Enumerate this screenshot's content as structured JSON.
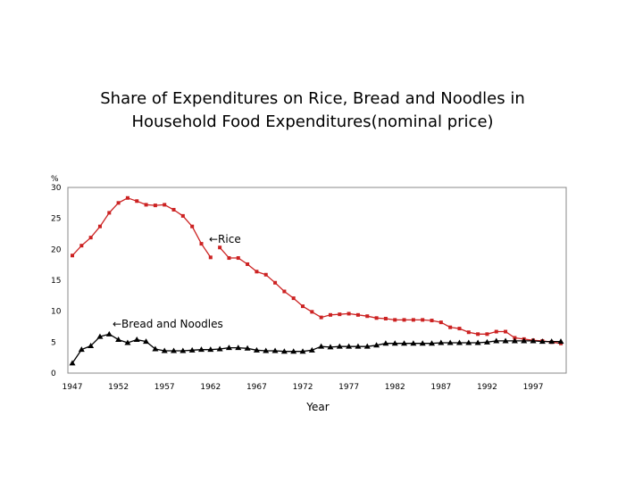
{
  "chart_data": {
    "type": "line",
    "title_line1": "Share of Expenditures on Rice, Bread and Noodles in",
    "title_line2": "Household Food Expenditures(nominal price)",
    "ylabel": "%",
    "xlabel": "Year",
    "ylim": [
      0,
      30
    ],
    "yticks": [
      "0",
      "5",
      "10",
      "15",
      "20",
      "25",
      "30"
    ],
    "xlim": [
      1947,
      2000
    ],
    "xticks": [
      "1947",
      "1952",
      "1957",
      "1962",
      "1967",
      "1972",
      "1977",
      "1982",
      "1987",
      "1992",
      "1997"
    ],
    "series": [
      {
        "name": "Rice",
        "annotation": "←Rice",
        "color": "#cc2222",
        "marker": "square",
        "segments": [
          {
            "x": [
              1947,
              1948,
              1949,
              1950,
              1951,
              1952,
              1953,
              1954,
              1955,
              1956,
              1957,
              1958,
              1959,
              1960,
              1961,
              1962
            ],
            "values": [
              19.0,
              20.6,
              21.9,
              23.7,
              25.9,
              27.5,
              28.3,
              27.8,
              27.2,
              27.1,
              27.2,
              26.4,
              25.4,
              23.7,
              20.9,
              18.7
            ]
          },
          {
            "x": [
              1963,
              1964,
              1965,
              1966,
              1967,
              1968,
              1969,
              1970,
              1971,
              1972,
              1973,
              1974,
              1975,
              1976,
              1977,
              1978,
              1979,
              1980,
              1981,
              1982,
              1983,
              1984,
              1985,
              1986,
              1987,
              1988,
              1989,
              1990,
              1991,
              1992,
              1993,
              1994,
              1995,
              1996,
              1997,
              1998,
              1999,
              2000
            ],
            "values": [
              20.3,
              18.6,
              18.6,
              17.6,
              16.4,
              15.9,
              14.6,
              13.2,
              12.1,
              10.8,
              9.9,
              9.0,
              9.4,
              9.5,
              9.6,
              9.4,
              9.2,
              8.9,
              8.8,
              8.6,
              8.6,
              8.6,
              8.6,
              8.5,
              8.2,
              7.4,
              7.2,
              6.6,
              6.3,
              6.3,
              6.7,
              6.7,
              5.7,
              5.5,
              5.3,
              5.2,
              5.0,
              4.8
            ]
          }
        ]
      },
      {
        "name": "Bread and Noodles",
        "annotation": "←Bread and Noodles",
        "color": "#000000",
        "marker": "triangle",
        "segments": [
          {
            "x": [
              1947,
              1948,
              1949,
              1950,
              1951,
              1952,
              1953,
              1954,
              1955,
              1956,
              1957,
              1958,
              1959,
              1960,
              1961,
              1962,
              1963,
              1964,
              1965,
              1966,
              1967,
              1968,
              1969,
              1970,
              1971,
              1972,
              1973,
              1974,
              1975,
              1976,
              1977,
              1978,
              1979,
              1980,
              1981,
              1982,
              1983,
              1984,
              1985,
              1986,
              1987,
              1988,
              1989,
              1990,
              1991,
              1992,
              1993,
              1994,
              1995,
              1996,
              1997,
              1998,
              1999,
              2000
            ],
            "values": [
              1.6,
              3.8,
              4.4,
              5.9,
              6.3,
              5.4,
              4.9,
              5.4,
              5.1,
              3.9,
              3.6,
              3.6,
              3.6,
              3.7,
              3.8,
              3.8,
              3.9,
              4.1,
              4.1,
              4.0,
              3.7,
              3.6,
              3.6,
              3.5,
              3.5,
              3.5,
              3.7,
              4.3,
              4.2,
              4.3,
              4.3,
              4.3,
              4.3,
              4.5,
              4.8,
              4.8,
              4.8,
              4.8,
              4.8,
              4.8,
              4.9,
              4.9,
              4.9,
              4.9,
              4.9,
              5.0,
              5.2,
              5.2,
              5.2,
              5.2,
              5.2,
              5.1,
              5.1,
              5.1
            ]
          }
        ]
      }
    ]
  }
}
